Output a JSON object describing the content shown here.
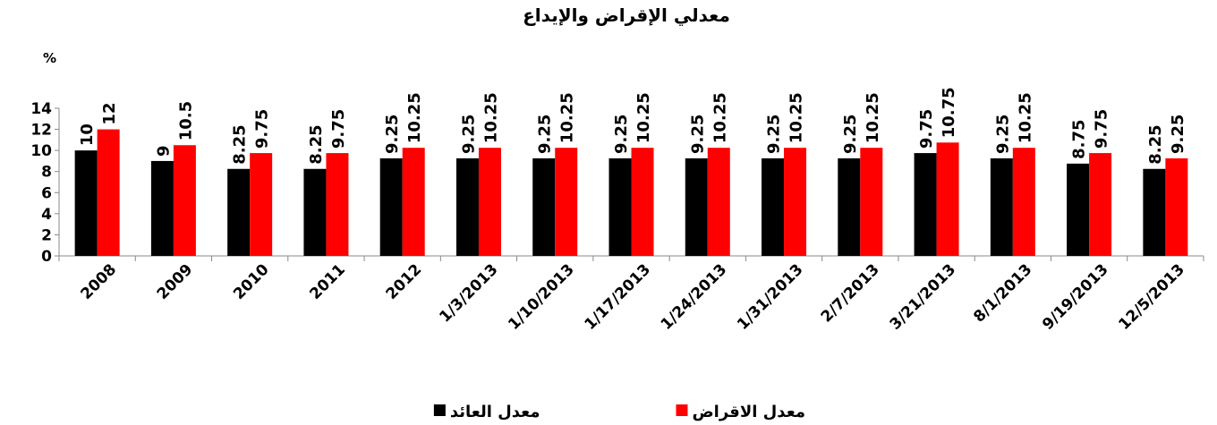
{
  "chart_data": {
    "type": "bar",
    "title": "معدلي الإقراض والإيداع",
    "y_label": "%",
    "categories": [
      "2008",
      "2009",
      "2010",
      "2011",
      "2012",
      "1/3/2013",
      "1/10/2013",
      "1/17/2013",
      "1/24/2013",
      "1/31/2013",
      "2/7/2013",
      "3/21/2013",
      "8/1/2013",
      "9/19/2013",
      "12/5/2013"
    ],
    "series": [
      {
        "name": "معدل العائد",
        "color": "#000000",
        "values": [
          10,
          9,
          8.25,
          8.25,
          9.25,
          9.25,
          9.25,
          9.25,
          9.25,
          9.25,
          9.25,
          9.75,
          9.25,
          8.75,
          8.25
        ]
      },
      {
        "name": "معدل الاقراض",
        "color": "#ff0000",
        "values": [
          12,
          10.5,
          9.75,
          9.75,
          10.25,
          10.25,
          10.25,
          10.25,
          10.25,
          10.25,
          10.25,
          10.75,
          10.25,
          9.75,
          9.25
        ]
      }
    ],
    "ylim": [
      0,
      14
    ],
    "yticks": [
      0,
      2,
      4,
      6,
      8,
      10,
      12,
      14
    ],
    "legend": "bottom"
  }
}
